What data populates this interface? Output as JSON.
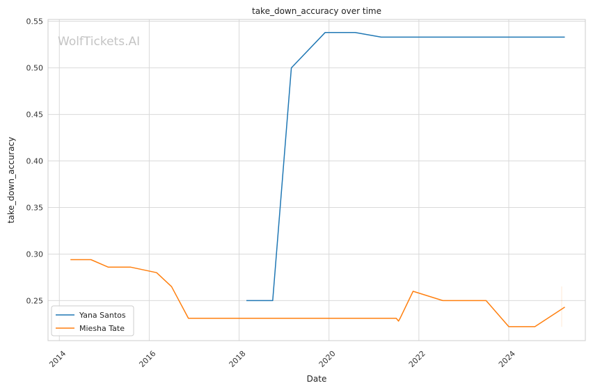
{
  "chart_data": {
    "type": "line",
    "title": "take_down_accuracy over time",
    "xlabel": "Date",
    "ylabel": "take_down_accuracy",
    "watermark": "WolfTickets.AI",
    "xlim": [
      "2013-10-01",
      "2025-09-15"
    ],
    "ylim": [
      0.207,
      0.552
    ],
    "x_ticks": [
      "2014",
      "2016",
      "2018",
      "2020",
      "2022",
      "2024"
    ],
    "y_ticks": [
      "0.25",
      "0.30",
      "0.35",
      "0.40",
      "0.45",
      "0.50",
      "0.55"
    ],
    "grid": true,
    "legend_position": "lower-left",
    "series": [
      {
        "name": "Yana Santos",
        "color": "#1f77b4",
        "points": [
          {
            "x": "2018-03-01",
            "y": 0.25
          },
          {
            "x": "2018-10-01",
            "y": 0.25
          },
          {
            "x": "2019-03-01",
            "y": 0.5
          },
          {
            "x": "2019-12-01",
            "y": 0.538
          },
          {
            "x": "2020-08-01",
            "y": 0.538
          },
          {
            "x": "2021-03-01",
            "y": 0.533
          },
          {
            "x": "2025-04-01",
            "y": 0.533
          }
        ]
      },
      {
        "name": "Miesha Tate",
        "color": "#ff7f0e",
        "points": [
          {
            "x": "2014-04-01",
            "y": 0.294
          },
          {
            "x": "2014-09-15",
            "y": 0.294
          },
          {
            "x": "2015-02-01",
            "y": 0.286
          },
          {
            "x": "2015-08-01",
            "y": 0.286
          },
          {
            "x": "2016-03-01",
            "y": 0.28
          },
          {
            "x": "2016-07-01",
            "y": 0.265
          },
          {
            "x": "2016-11-15",
            "y": 0.231
          },
          {
            "x": "2021-07-01",
            "y": 0.231
          },
          {
            "x": "2021-07-20",
            "y": 0.228
          },
          {
            "x": "2021-08-01",
            "y": 0.231
          },
          {
            "x": "2021-11-15",
            "y": 0.26
          },
          {
            "x": "2022-07-15",
            "y": 0.25
          },
          {
            "x": "2023-07-01",
            "y": 0.25
          },
          {
            "x": "2024-01-01",
            "y": 0.222
          },
          {
            "x": "2024-08-01",
            "y": 0.222
          },
          {
            "x": "2025-04-01",
            "y": 0.243
          }
        ]
      }
    ]
  }
}
